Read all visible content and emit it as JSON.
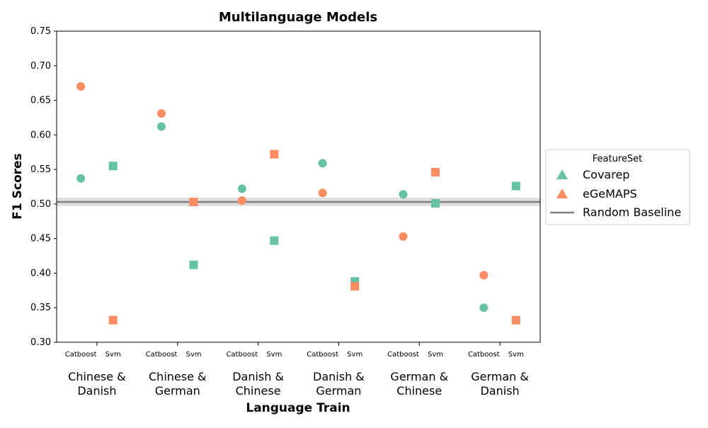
{
  "chart_data": {
    "type": "scatter",
    "title": "Multilanguage Models",
    "xlabel": "Language Train",
    "ylabel": "F1 Scores",
    "ylim": [
      0.3,
      0.75
    ],
    "yticks": [
      "0.30",
      "0.35",
      "0.40",
      "0.45",
      "0.50",
      "0.55",
      "0.60",
      "0.65",
      "0.70",
      "0.75"
    ],
    "models": [
      "Catboost",
      "Svm"
    ],
    "groups": [
      {
        "line1": "Chinese &",
        "line2": "Danish"
      },
      {
        "line1": "Chinese &",
        "line2": "German"
      },
      {
        "line1": "Danish &",
        "line2": "Chinese"
      },
      {
        "line1": "Danish &",
        "line2": "German"
      },
      {
        "line1": "German &",
        "line2": "Chinese"
      },
      {
        "line1": "German &",
        "line2": "Danish"
      }
    ],
    "series": [
      {
        "name": "Covarep",
        "color": "#66c2a5",
        "catboost": [
          0.537,
          0.612,
          0.522,
          0.559,
          0.514,
          0.35
        ],
        "svm": [
          0.555,
          0.412,
          0.447,
          0.388,
          0.501,
          0.526
        ]
      },
      {
        "name": "eGeMAPS",
        "color": "#fc8d62",
        "catboost": [
          0.67,
          0.631,
          0.505,
          0.516,
          0.453,
          0.397
        ],
        "svm": [
          0.332,
          0.503,
          0.572,
          0.381,
          0.546,
          0.332
        ]
      }
    ],
    "baseline": {
      "name": "Random Baseline",
      "value": 0.503,
      "band": [
        0.497,
        0.509
      ],
      "color": "#808080"
    },
    "legend": {
      "title": "FeatureSet",
      "placement": "center-right"
    }
  }
}
